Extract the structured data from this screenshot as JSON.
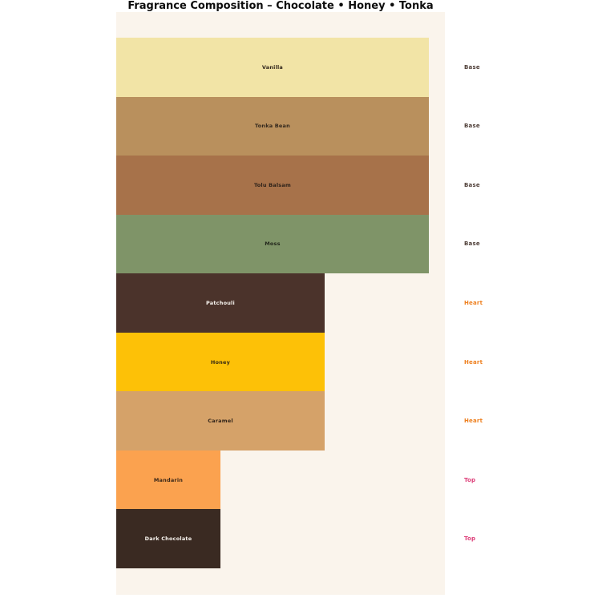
{
  "title": "Fragrance Composition – Chocolate • Honey • Tonka",
  "colors": {
    "page_bg": "#ffffff",
    "plot_bg": "#faf4ec",
    "title_text": "#0d0d0d"
  },
  "chart_data": {
    "type": "bar",
    "orientation": "horizontal",
    "title": "Fragrance Composition – Chocolate • Honey • Tonka",
    "xlabel": "",
    "ylabel": "",
    "xlim": [
      0,
      3.15
    ],
    "grid": false,
    "legend": "none",
    "categories": [
      "Vanilla",
      "Tonka Bean",
      "Tolu Balsam",
      "Moss",
      "Patchouli",
      "Honey",
      "Caramel",
      "Mandarin",
      "Dark Chocolate"
    ],
    "values": [
      3,
      3,
      3,
      3,
      2,
      2,
      2,
      1,
      1
    ],
    "tiers": [
      "Base",
      "Base",
      "Base",
      "Base",
      "Heart",
      "Heart",
      "Heart",
      "Top",
      "Top"
    ],
    "tier_colors": {
      "Base": "#51413a",
      "Heart": "#ee8020",
      "Top": "#dd3d78"
    },
    "bars": [
      {
        "label": "Vanilla",
        "tier": "Base",
        "value": 3,
        "width_pct": 95.1,
        "color": "#f2e4a6",
        "text_color": "#33281d"
      },
      {
        "label": "Tonka Bean",
        "tier": "Base",
        "value": 3,
        "width_pct": 95.1,
        "color": "#b9905d",
        "text_color": "#33281d"
      },
      {
        "label": "Tolu Balsam",
        "tier": "Base",
        "value": 3,
        "width_pct": 95.1,
        "color": "#a7724a",
        "text_color": "#2e221a"
      },
      {
        "label": "Moss",
        "tier": "Base",
        "value": 3,
        "width_pct": 95.1,
        "color": "#7f9468",
        "text_color": "#23281c"
      },
      {
        "label": "Patchouli",
        "tier": "Heart",
        "value": 2,
        "width_pct": 63.4,
        "color": "#4b332b",
        "text_color": "#f8f4ef"
      },
      {
        "label": "Honey",
        "tier": "Heart",
        "value": 2,
        "width_pct": 63.4,
        "color": "#fdc107",
        "text_color": "#3a2c12"
      },
      {
        "label": "Caramel",
        "tier": "Heart",
        "value": 2,
        "width_pct": 63.4,
        "color": "#d5a269",
        "text_color": "#33251a"
      },
      {
        "label": "Mandarin",
        "tier": "Top",
        "value": 1,
        "width_pct": 31.7,
        "color": "#fba24f",
        "text_color": "#3c2818"
      },
      {
        "label": "Dark Chocolate",
        "tier": "Top",
        "value": 1,
        "width_pct": 31.7,
        "color": "#3a2a22",
        "text_color": "#f8f4ef"
      }
    ]
  }
}
